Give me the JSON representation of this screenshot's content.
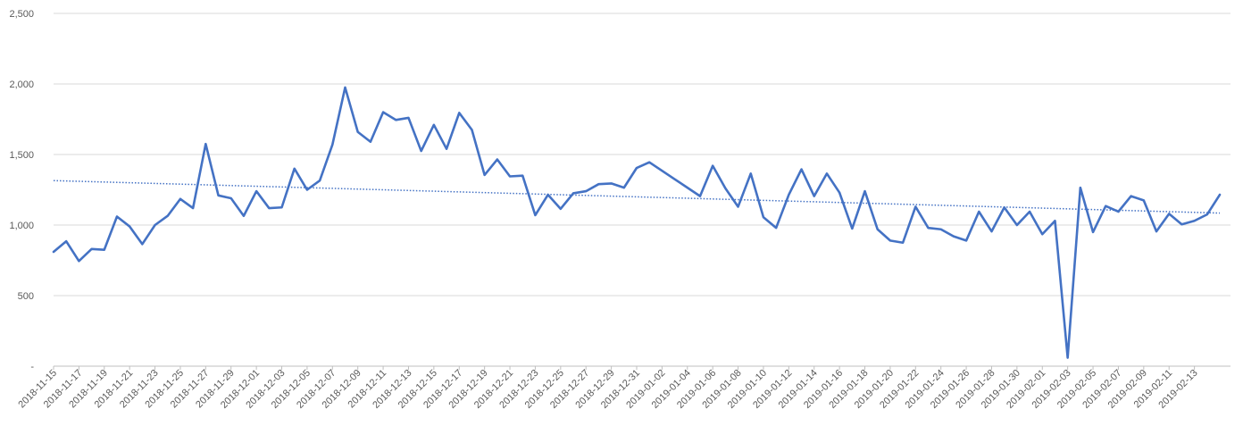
{
  "chart_data": {
    "type": "line",
    "title": "",
    "xlabel": "",
    "ylabel": "",
    "ylim": [
      0,
      2500
    ],
    "y_ticks": [
      {
        "value": 0,
        "label": "-"
      },
      {
        "value": 500,
        "label": "500"
      },
      {
        "value": 1000,
        "label": "1,000"
      },
      {
        "value": 1500,
        "label": "1,500"
      },
      {
        "value": 2000,
        "label": "2,000"
      },
      {
        "value": 2500,
        "label": "2,500"
      }
    ],
    "grid": true,
    "legend": "none",
    "x_tick_labels": [
      "2018-11-15",
      "2018-11-17",
      "2018-11-19",
      "2018-11-21",
      "2018-11-23",
      "2018-11-25",
      "2018-11-27",
      "2018-11-29",
      "2018-12-01",
      "2018-12-03",
      "2018-12-05",
      "2018-12-07",
      "2018-12-09",
      "2018-12-11",
      "2018-12-13",
      "2018-12-15",
      "2018-12-17",
      "2018-12-19",
      "2018-12-21",
      "2018-12-23",
      "2018-12-25",
      "2018-12-27",
      "2018-12-29",
      "2018-12-31",
      "2019-01-02",
      "2019-01-04",
      "2019-01-06",
      "2019-01-08",
      "2019-01-10",
      "2019-01-12",
      "2019-01-14",
      "2019-01-16",
      "2019-01-18",
      "2019-01-20",
      "2019-01-22",
      "2019-01-24",
      "2019-01-26",
      "2019-01-28",
      "2019-01-30",
      "2019-02-01",
      "2019-02-03",
      "2019-02-05",
      "2019-02-07",
      "2019-02-09",
      "2019-02-11",
      "2019-02-13"
    ],
    "x_start": "2018-11-15",
    "x_end": "2019-02-14",
    "series": [
      {
        "color": "#4472c4",
        "style": "solid",
        "values": [
          810,
          885,
          745,
          830,
          825,
          1060,
          990,
          865,
          1000,
          1065,
          1185,
          1120,
          1575,
          1210,
          1190,
          1065,
          1240,
          1120,
          1125,
          1400,
          1250,
          1315,
          1570,
          1975,
          1660,
          1590,
          1800,
          1745,
          1760,
          1525,
          1710,
          1540,
          1795,
          1675,
          1355,
          1465,
          1345,
          1350,
          1070,
          1215,
          1115,
          1225,
          1240,
          1290,
          1295,
          1265,
          1405,
          1445,
          1385,
          1325,
          1265,
          1205,
          1420,
          1260,
          1130,
          1365,
          1055,
          980,
          1215,
          1395,
          1205,
          1365,
          1230,
          975,
          1240,
          970,
          890,
          875,
          1130,
          980,
          970,
          920,
          890,
          1095,
          955,
          1125,
          1000,
          1095,
          935,
          1030,
          60,
          1265,
          950,
          1135,
          1095,
          1205,
          1175,
          955,
          1080,
          1005,
          1030,
          1075,
          1215
        ]
      },
      {
        "color": "#4472c4",
        "style": "dotted",
        "kind": "trendline",
        "values": [
          1315,
          1085
        ]
      }
    ]
  }
}
